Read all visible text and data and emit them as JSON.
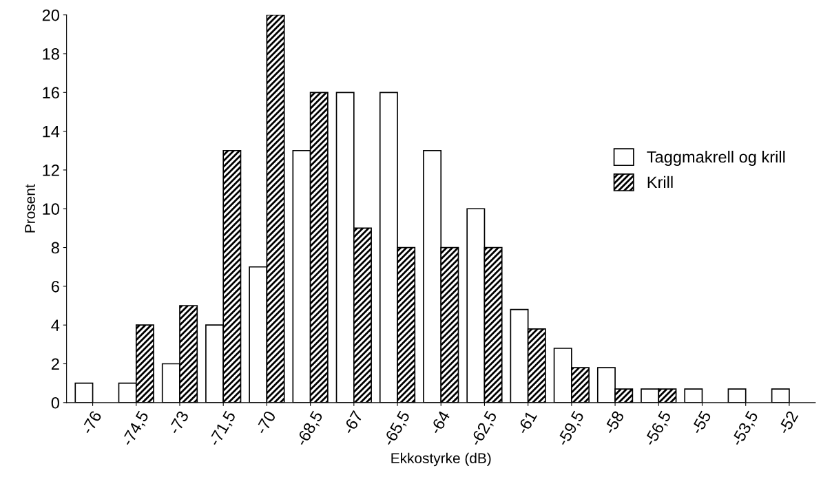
{
  "chart_data": {
    "type": "bar",
    "xlabel": "Ekkostyrke (dB)",
    "ylabel": "Prosent",
    "categories": [
      "-76",
      "-74,5",
      "-73",
      "-71,5",
      "-70",
      "-68,5",
      "-67",
      "-65,5",
      "-64",
      "-62,5",
      "-61",
      "-59,5",
      "-58",
      "-56,5",
      "-55",
      "-53,5",
      "-52"
    ],
    "series": [
      {
        "name": "Taggmakrell og krill",
        "color": "#ffffff",
        "values": [
          1,
          1,
          2,
          4,
          7,
          13,
          16,
          16,
          13,
          10,
          4.8,
          2.8,
          1.8,
          0.7,
          0.7,
          0.7,
          0.7
        ]
      },
      {
        "name": "Krill",
        "color": "#000000",
        "values": [
          null,
          4,
          5,
          13,
          20,
          16,
          9,
          8,
          8,
          8,
          3.8,
          1.8,
          0.7,
          0.7,
          null,
          null,
          null
        ]
      }
    ],
    "ylim": [
      0,
      20
    ],
    "yticks": [
      0,
      2,
      4,
      6,
      8,
      10,
      12,
      14,
      16,
      18,
      20
    ],
    "grid": false,
    "legend": "right"
  }
}
